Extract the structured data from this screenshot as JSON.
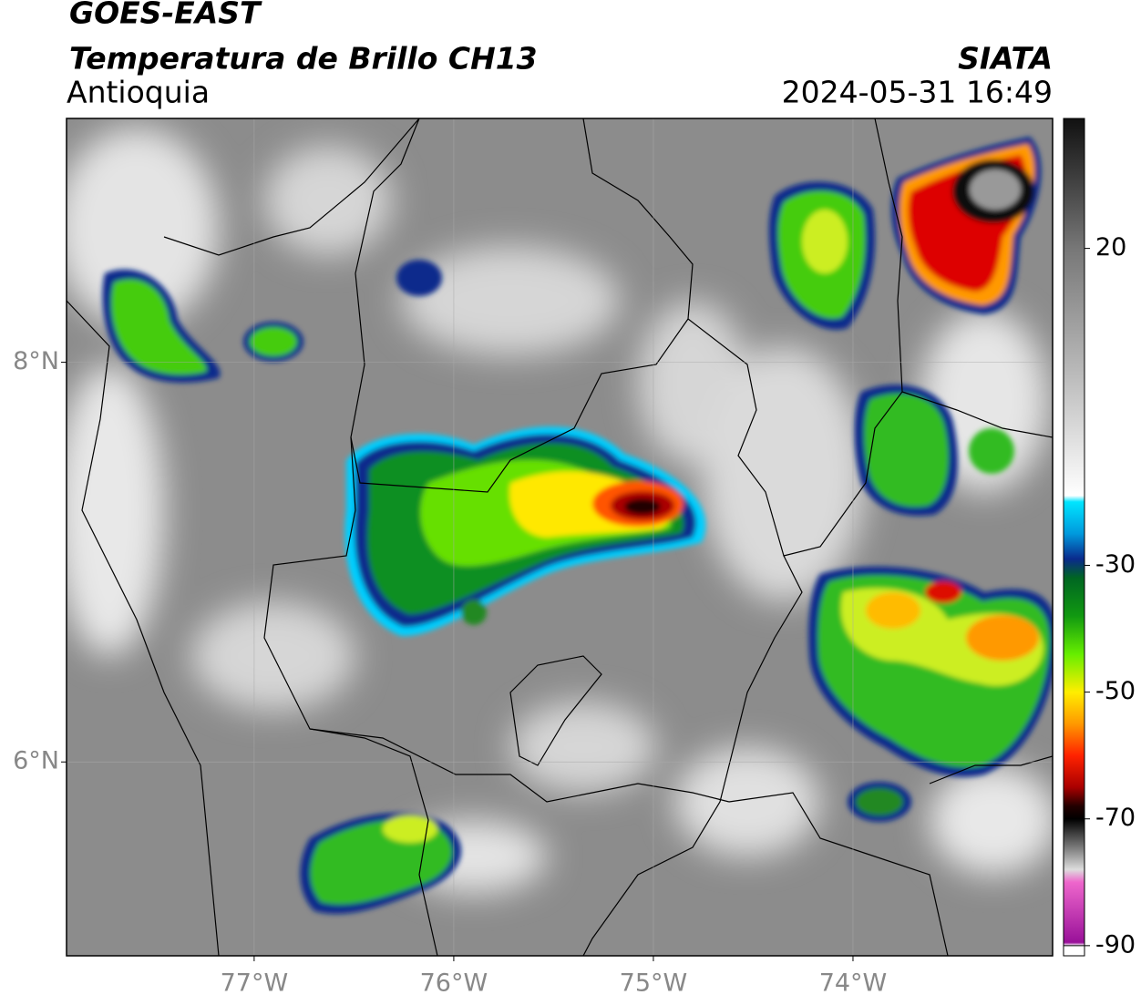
{
  "header": {
    "title": "GOES-EAST",
    "subtitle": "Temperatura de Brillo CH13",
    "region": "Antioquia",
    "source": "SIATA",
    "datetime": "2024-05-31 16:49"
  },
  "map": {
    "xlim": [
      -77.94,
      -73.0
    ],
    "ylim": [
      5.03,
      9.22
    ],
    "xticks": [
      {
        "value": -77,
        "label": "77°W"
      },
      {
        "value": -76,
        "label": "76°W"
      },
      {
        "value": -75,
        "label": "75°W"
      },
      {
        "value": -74,
        "label": "74°W"
      }
    ],
    "yticks": [
      {
        "value": 8,
        "label": "8°N"
      },
      {
        "value": 6,
        "label": "6°N"
      }
    ],
    "grid": true
  },
  "colorbar": {
    "lim": [
      -91.6,
      40.5
    ],
    "ticks": [
      20,
      -30,
      -50,
      -70,
      -90
    ],
    "colors": [
      {
        "value": 40.5,
        "color": "#111111"
      },
      {
        "value": 30,
        "color": "#444444"
      },
      {
        "value": 20,
        "color": "#777777"
      },
      {
        "value": 0,
        "color": "#bbbbbb"
      },
      {
        "value": -19,
        "color": "#ffffff"
      },
      {
        "value": -20,
        "color": "#00e5ff"
      },
      {
        "value": -25,
        "color": "#0099dd"
      },
      {
        "value": -29,
        "color": "#0a2a8c"
      },
      {
        "value": -32,
        "color": "#006622"
      },
      {
        "value": -38,
        "color": "#119911"
      },
      {
        "value": -44,
        "color": "#66ee00"
      },
      {
        "value": -50,
        "color": "#ffee00"
      },
      {
        "value": -55,
        "color": "#ff9900"
      },
      {
        "value": -60,
        "color": "#ff2200"
      },
      {
        "value": -65,
        "color": "#aa0000"
      },
      {
        "value": -68,
        "color": "#220000"
      },
      {
        "value": -70,
        "color": "#000000"
      },
      {
        "value": -75,
        "color": "#888888"
      },
      {
        "value": -78,
        "color": "#dddddd"
      },
      {
        "value": -80,
        "color": "#ee66cc"
      },
      {
        "value": -89.5,
        "color": "#991199"
      },
      {
        "value": -90,
        "color": "#ffffff"
      }
    ]
  }
}
